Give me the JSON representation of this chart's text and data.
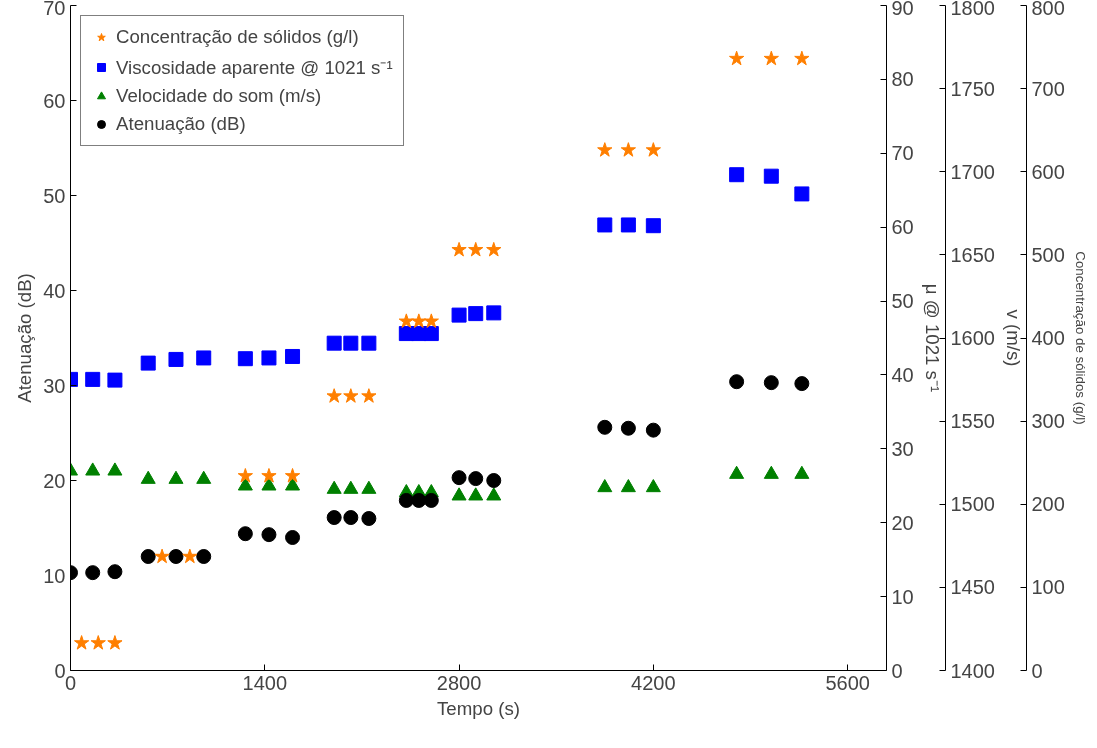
{
  "chart_data": [
    {
      "type": "scatter",
      "xlabel": "Tempo (s)",
      "ylabel": "Atenuação (dB)",
      "y2label": "μ @ 1021 s⁻¹",
      "y3label": "v (m/s)",
      "xlim": [
        0,
        5880
      ],
      "xticks": [
        0,
        1400,
        2800,
        4200,
        5600
      ],
      "ylim": [
        0,
        70
      ],
      "yticks": [
        0,
        10,
        20,
        30,
        40,
        50,
        60,
        70
      ],
      "y2lim": [
        0,
        90
      ],
      "y2ticks": [
        0,
        10,
        20,
        30,
        40,
        50,
        60,
        70,
        80,
        90
      ],
      "y3lim": [
        1400,
        1800
      ],
      "y3ticks": [
        1400,
        1450,
        1500,
        1550,
        1600,
        1650,
        1700,
        1750,
        1800
      ],
      "legend": "top left",
      "grid": false,
      "x": [
        0,
        160,
        320,
        560,
        760,
        960,
        1260,
        1430,
        1600,
        1900,
        2020,
        2150,
        2420,
        2510,
        2600,
        2800,
        2920,
        3050,
        3850,
        4020,
        4200,
        4800,
        5050,
        5270
      ],
      "series": [
        {
          "name": "Viscosidade aparente @ 1021 s⁻¹",
          "axis": "y2",
          "marker": "square",
          "color": "#0000ff",
          "values": [
            39.4,
            39.4,
            39.3,
            41.6,
            42.1,
            42.3,
            42.2,
            42.3,
            42.5,
            44.3,
            44.3,
            44.3,
            45.6,
            45.6,
            45.6,
            48.1,
            48.3,
            48.4,
            60.3,
            60.3,
            60.2,
            67.1,
            66.9,
            64.5
          ]
        },
        {
          "name": "Velocidade do som (m/s)",
          "axis": "y3",
          "marker": "triangle",
          "color": "#008000",
          "values": [
            1520,
            1520,
            1520,
            1515,
            1515,
            1515,
            1511,
            1511,
            1511,
            1509,
            1509,
            1509,
            1507,
            1507,
            1507,
            1505,
            1505,
            1505,
            1510,
            1510,
            1510,
            1518,
            1518,
            1518
          ]
        },
        {
          "name": "Atenuação (dB)",
          "marker": "circle",
          "color": "#000000",
          "values": [
            10.3,
            10.3,
            10.4,
            12.0,
            12.0,
            12.0,
            14.4,
            14.3,
            14.0,
            16.1,
            16.1,
            16.0,
            17.9,
            17.9,
            17.9,
            20.3,
            20.2,
            20.0,
            25.6,
            25.5,
            25.3,
            30.4,
            30.3,
            30.2
          ]
        }
      ]
    },
    {
      "type": "scatter",
      "ylabel": "Concentração de sólidos (g/l)",
      "xlim": [
        0,
        5880
      ],
      "ylim": [
        0,
        800
      ],
      "yticks": [
        0,
        100,
        200,
        300,
        400,
        500,
        600,
        700,
        800
      ],
      "tick_labels": "y",
      "legend": "top left",
      "series": [
        {
          "name": "Concentração de sólidos (g/l)",
          "marker": "star",
          "color": "#ff7f00",
          "x": [
            80,
            200,
            320,
            660,
            860,
            1260,
            1430,
            1600,
            1900,
            2020,
            2150,
            2420,
            2510,
            2600,
            2800,
            2920,
            3050,
            3850,
            4020,
            4200,
            4800,
            5050,
            5270
          ],
          "values": [
            33,
            33,
            33,
            137,
            137,
            234,
            234,
            234,
            330,
            330,
            330,
            420,
            420,
            420,
            506,
            506,
            506,
            626,
            626,
            626,
            736,
            736,
            736
          ]
        }
      ]
    }
  ]
}
